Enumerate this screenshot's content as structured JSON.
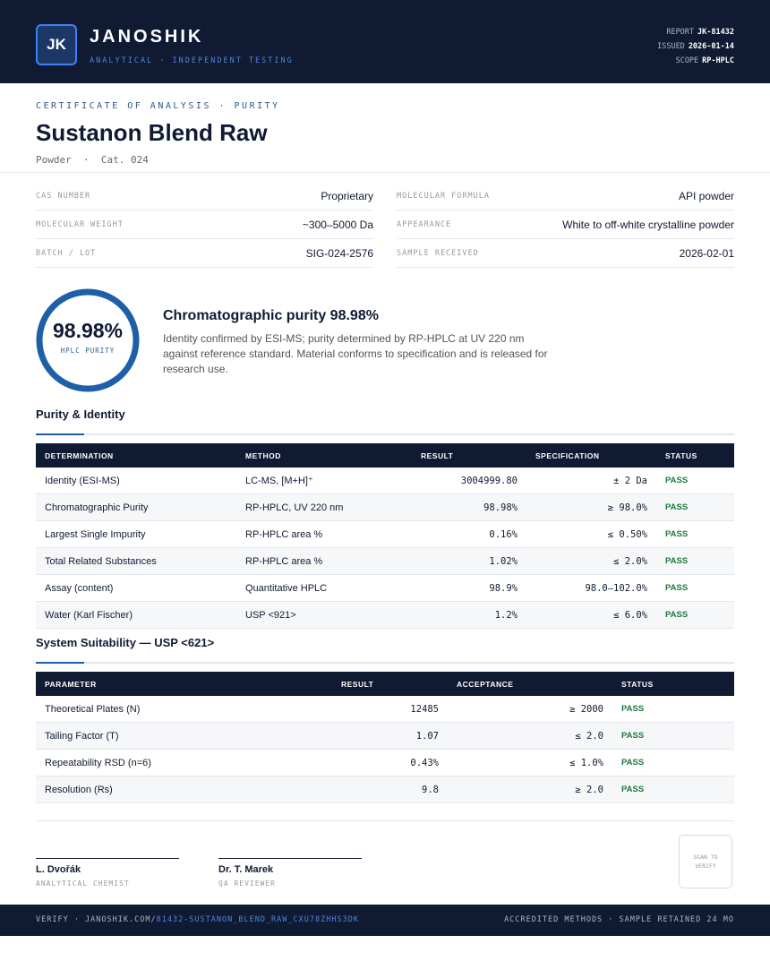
{
  "header": {
    "logo": "JK",
    "brand": "JANOSHIK",
    "tagline": "ANALYTICAL · INDEPENDENT TESTING",
    "meta": [
      {
        "label": "REPORT",
        "value": "JK-81432"
      },
      {
        "label": "ISSUED",
        "value": "2026-01-14"
      },
      {
        "label": "SCOPE",
        "value": "RP-HPLC"
      }
    ]
  },
  "document": {
    "kicker": "CERTIFICATE OF ANALYSIS · PURITY",
    "title": "Sustanon Blend Raw",
    "subtitle": "Powder  ·  Cat. 024"
  },
  "properties": [
    {
      "label": "CAS NUMBER",
      "value": "Proprietary"
    },
    {
      "label": "MOLECULAR FORMULA",
      "value": "API powder"
    },
    {
      "label": "MOLECULAR WEIGHT",
      "value": "~300–5000 Da"
    },
    {
      "label": "APPEARANCE",
      "value": "White to off-white crystalline powder"
    },
    {
      "label": "BATCH / LOT",
      "value": "SIG-024-2576"
    },
    {
      "label": "SAMPLE RECEIVED",
      "value": "2026-02-01"
    }
  ],
  "purity": {
    "value": "98.98%",
    "label": "HPLC PURITY",
    "heading": "Chromatographic purity 98.98%",
    "description": "Identity confirmed by ESI-MS; purity determined by RP-HPLC at UV 220 nm against reference standard. Material conforms to specification and is released for research use."
  },
  "tables": [
    {
      "title": "Purity & Identity",
      "columns": [
        "DETERMINATION",
        "METHOD",
        "RESULT",
        "SPECIFICATION",
        "STATUS"
      ],
      "rows": [
        [
          "Identity (ESI-MS)",
          "LC-MS, [M+H]⁺",
          "3004999.80",
          "± 2 Da",
          "PASS"
        ],
        [
          "Chromatographic Purity",
          "RP-HPLC, UV 220 nm",
          "98.98%",
          "≥ 98.0%",
          "PASS"
        ],
        [
          "Largest Single Impurity",
          "RP-HPLC area %",
          "0.16%",
          "≤ 0.50%",
          "PASS"
        ],
        [
          "Total Related Substances",
          "RP-HPLC area %",
          "1.02%",
          "≤ 2.0%",
          "PASS"
        ],
        [
          "Assay (content)",
          "Quantitative HPLC",
          "98.9%",
          "98.0–102.0%",
          "PASS"
        ],
        [
          "Water (Karl Fischer)",
          "USP <921>",
          "1.2%",
          "≤ 6.0%",
          "PASS"
        ]
      ]
    },
    {
      "title": "System Suitability — USP <621>",
      "columns": [
        "PARAMETER",
        "RESULT",
        "ACCEPTANCE",
        "STATUS"
      ],
      "rows": [
        [
          "Theoretical Plates (N)",
          "12485",
          "≥ 2000",
          "PASS"
        ],
        [
          "Tailing Factor (T)",
          "1.07",
          "≤ 2.0",
          "PASS"
        ],
        [
          "Repeatability RSD (n=6)",
          "0.43%",
          "≤ 1.0%",
          "PASS"
        ],
        [
          "Resolution (Rs)",
          "9.8",
          "≥ 2.0",
          "PASS"
        ]
      ]
    }
  ],
  "signatures": [
    {
      "name": "L. Dvořák",
      "role": "ANALYTICAL CHEMIST"
    },
    {
      "name": "Dr. T. Marek",
      "role": "QA REVIEWER"
    }
  ],
  "qr": "SCAN TO VERIFY",
  "footer": {
    "verify": "VERIFY · JANOSHIK.COM/",
    "link": "81432-SUSTANON_BLEND_RAW_CXU78ZHHS3DK",
    "note": "ACCREDITED METHODS · SAMPLE RETAINED 24 MO"
  }
}
